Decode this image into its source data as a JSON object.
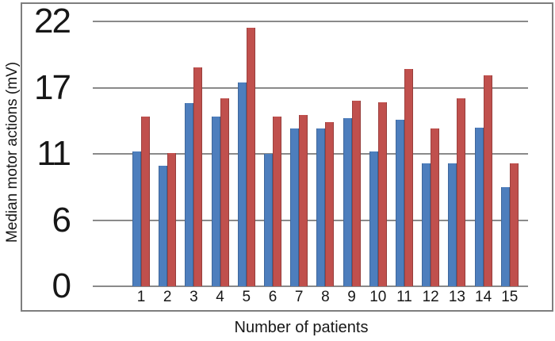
{
  "chart_data": {
    "type": "bar",
    "title": "",
    "xlabel": "Number of patients",
    "ylabel": "Median motor actions (mV)",
    "categories": [
      "1",
      "2",
      "3",
      "4",
      "5",
      "6",
      "7",
      "8",
      "9",
      "10",
      "11",
      "12",
      "13",
      "14",
      "15"
    ],
    "series": [
      {
        "name": "blue",
        "color": "#4d7ebd",
        "values": [
          11.2,
          10.1,
          15.6,
          14.4,
          17.4,
          11.0,
          13.3,
          13.3,
          14.2,
          11.2,
          14.1,
          10.3,
          10.3,
          13.4,
          8.5
        ]
      },
      {
        "name": "red",
        "color": "#c0504d",
        "values": [
          14.4,
          11.1,
          18.5,
          16.0,
          21.5,
          14.4,
          14.5,
          13.9,
          15.8,
          15.7,
          18.4,
          13.3,
          16.0,
          17.9,
          10.3
        ]
      }
    ],
    "yticks": [
      0,
      6,
      11,
      17,
      22
    ],
    "ylim": [
      0,
      22
    ],
    "grid": true,
    "legend": false,
    "gridline_color": "#8a8a8a",
    "frame_color": "#7e7e7e"
  }
}
